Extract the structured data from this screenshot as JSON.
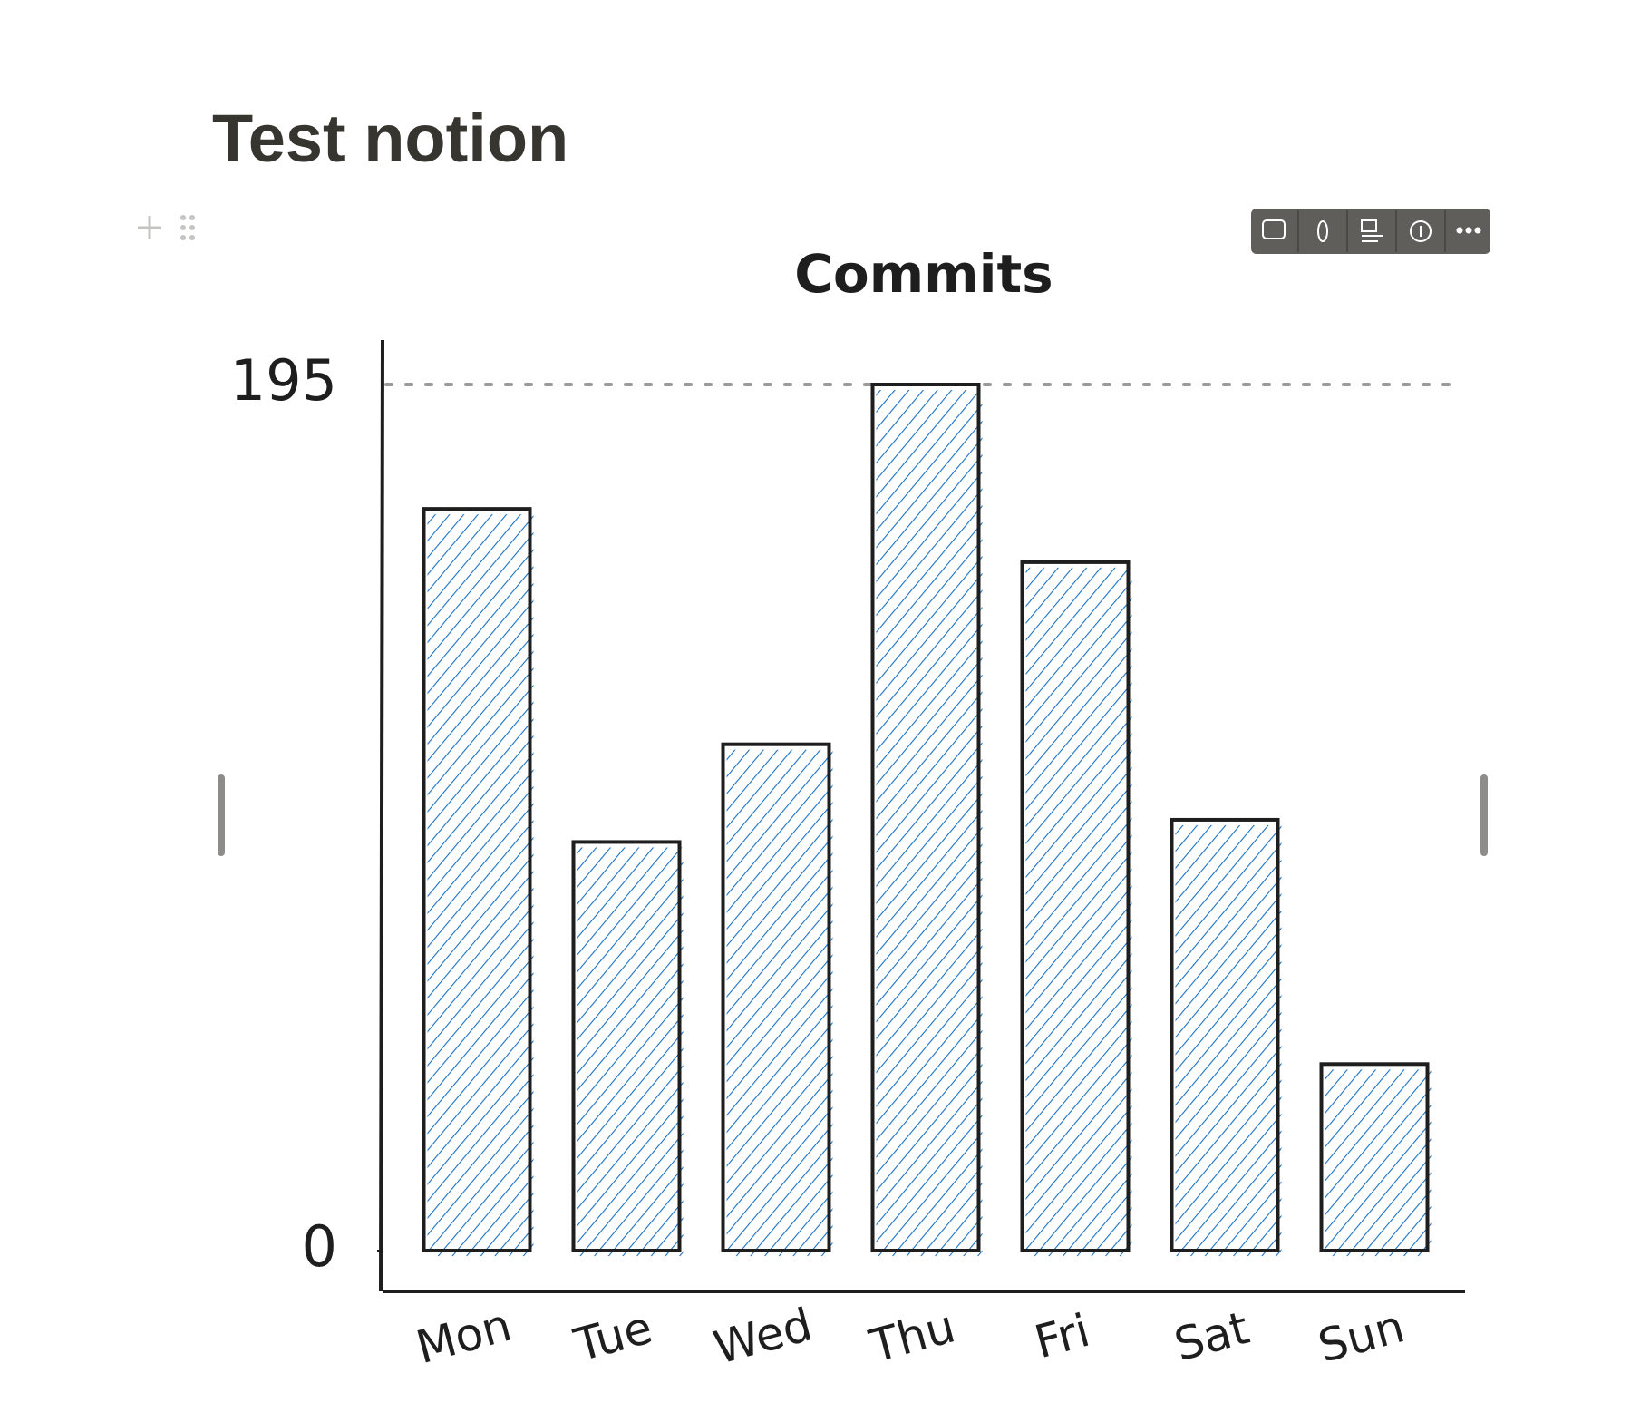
{
  "page": {
    "title": "Test notion"
  },
  "chart_data": {
    "type": "bar",
    "title": "Commits",
    "categories": [
      "Mon",
      "Tue",
      "Wed",
      "Thu",
      "Fri",
      "Sat",
      "Sun"
    ],
    "values": [
      167,
      92,
      114,
      195,
      155,
      97,
      42
    ],
    "color": "#1971c2",
    "ylim": [
      0,
      195
    ],
    "yticks": [
      0,
      195
    ],
    "grid": true
  }
}
